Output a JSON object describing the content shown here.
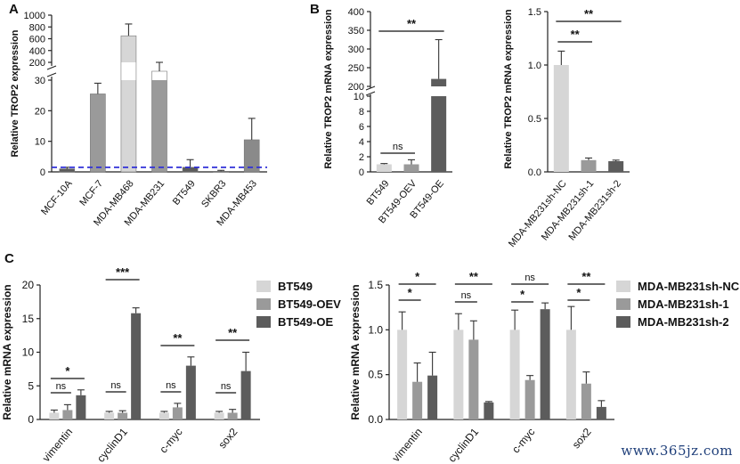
{
  "panels": {
    "A": "A",
    "B": "B",
    "C": "C"
  },
  "watermark": "www.365jz.com",
  "colors": {
    "light": "#d6d6d6",
    "mid": "#9a9a9a",
    "dark": "#5c5c5c",
    "dash": "#3030d8"
  },
  "chart_data": [
    {
      "id": "A",
      "type": "bar",
      "ylabel": "Relative TROP2 expression",
      "broken_axis": true,
      "lower_ylim": [
        0,
        30
      ],
      "lower_ticks": [
        "0",
        "10",
        "20",
        "30"
      ],
      "upper_ylim": [
        0,
        1000
      ],
      "upper_ticks": [
        "200",
        "400",
        "600",
        "800",
        "1000"
      ],
      "reference_line": 1.5,
      "categories": [
        "MCF-10A",
        "MCF-7",
        "MDA-MB468",
        "MDA-MB231",
        "BT549",
        "SKBR3",
        "MDA-MB453"
      ],
      "values": [
        1,
        25.5,
        650,
        180,
        1.5,
        0.2,
        10.5
      ],
      "errors": [
        0.5,
        3.5,
        200,
        20,
        2.5,
        0.3,
        7
      ],
      "bar_colors": [
        "#5c5c5c",
        "#9a9a9a",
        "#d6d6d6",
        "#9a9a9a",
        "#5c5c5c",
        "#5c5c5c",
        "#8a8a8a"
      ]
    },
    {
      "id": "B-left",
      "type": "bar",
      "ylabel": "Relative TROP2 mRNA expression",
      "broken_axis": true,
      "lower_ylim": [
        0,
        10
      ],
      "lower_ticks": [
        "0",
        "2",
        "4",
        "6",
        "8",
        "10"
      ],
      "upper_ylim": [
        200,
        400
      ],
      "upper_ticks": [
        "200",
        "250",
        "300",
        "350",
        "400"
      ],
      "categories": [
        "BT549",
        "BT549-OEV",
        "BT549-OE"
      ],
      "values": [
        1,
        1,
        220
      ],
      "errors": [
        0.1,
        0.6,
        105
      ],
      "bar_colors": [
        "#d6d6d6",
        "#9a9a9a",
        "#5c5c5c"
      ],
      "annotations": [
        {
          "from": 0,
          "to": 2,
          "text": "**"
        },
        {
          "from": 0,
          "to": 1,
          "text": "ns"
        }
      ]
    },
    {
      "id": "B-right",
      "type": "bar",
      "ylabel": "Relative TROP2 mRNA expression",
      "ylim": [
        0,
        1.5
      ],
      "yticks": [
        "0.0",
        "0.5",
        "1.0",
        "1.5"
      ],
      "categories": [
        "MDA-MB231sh-NC",
        "MDA-MB231sh-1",
        "MDA-MB231sh-2"
      ],
      "values": [
        1.0,
        0.11,
        0.1
      ],
      "errors": [
        0.13,
        0.02,
        0.01
      ],
      "bar_colors": [
        "#d6d6d6",
        "#9a9a9a",
        "#5c5c5c"
      ],
      "annotations": [
        {
          "from": 0,
          "to": 2,
          "text": "**"
        },
        {
          "from": 0,
          "to": 1,
          "text": "**"
        }
      ]
    },
    {
      "id": "C-left",
      "type": "bar",
      "ylabel": "Relative mRNA expression",
      "ylim": [
        0,
        20
      ],
      "yticks": [
        "0",
        "5",
        "10",
        "15",
        "20"
      ],
      "categories": [
        "vimentin",
        "cyclinD1",
        "c-myc",
        "sox2"
      ],
      "series": [
        {
          "name": "BT549",
          "values": [
            1,
            1,
            1,
            1
          ],
          "errors": [
            0.4,
            0.2,
            0.2,
            0.2
          ]
        },
        {
          "name": "BT549-OEV",
          "values": [
            1.4,
            1,
            1.8,
            1
          ],
          "errors": [
            0.8,
            0.3,
            0.6,
            0.5
          ]
        },
        {
          "name": "BT549-OE",
          "values": [
            3.6,
            15.8,
            8,
            7.2
          ],
          "errors": [
            0.8,
            0.8,
            1.3,
            2.8
          ]
        }
      ],
      "legend": "right",
      "annotations": [
        {
          "group": 0,
          "from": 0,
          "to": 2,
          "text": "*",
          "level": 2
        },
        {
          "group": 0,
          "from": 0,
          "to": 1,
          "text": "ns",
          "level": 1
        },
        {
          "group": 1,
          "from": 0,
          "to": 2,
          "text": "***",
          "level": 2
        },
        {
          "group": 1,
          "from": 0,
          "to": 1,
          "text": "ns",
          "level": 1
        },
        {
          "group": 2,
          "from": 0,
          "to": 2,
          "text": "**",
          "level": 2
        },
        {
          "group": 2,
          "from": 0,
          "to": 1,
          "text": "ns",
          "level": 1
        },
        {
          "group": 3,
          "from": 0,
          "to": 2,
          "text": "**",
          "level": 2
        },
        {
          "group": 3,
          "from": 0,
          "to": 1,
          "text": "ns",
          "level": 1
        }
      ]
    },
    {
      "id": "C-right",
      "type": "bar",
      "ylabel": "Relative mRNA expression",
      "ylim": [
        0,
        1.5
      ],
      "yticks": [
        "0.0",
        "0.5",
        "1.0",
        "1.5"
      ],
      "categories": [
        "vimentin",
        "cyclinD1",
        "c-myc",
        "sox2"
      ],
      "series": [
        {
          "name": "MDA-MB231sh-NC",
          "values": [
            1,
            1,
            1,
            1
          ],
          "errors": [
            0.2,
            0.18,
            0.22,
            0.26
          ]
        },
        {
          "name": "MDA-MB231sh-1",
          "values": [
            0.42,
            0.89,
            0.44,
            0.4
          ],
          "errors": [
            0.21,
            0.21,
            0.05,
            0.13
          ]
        },
        {
          "name": "MDA-MB231sh-2",
          "values": [
            0.49,
            0.19,
            1.23,
            0.14
          ],
          "errors": [
            0.26,
            0.01,
            0.07,
            0.07
          ]
        }
      ],
      "legend": "right",
      "annotations": [
        {
          "group": 0,
          "from": 0,
          "to": 2,
          "text": "*",
          "level": 2
        },
        {
          "group": 0,
          "from": 0,
          "to": 1,
          "text": "*",
          "level": 1
        },
        {
          "group": 1,
          "from": 0,
          "to": 2,
          "text": "**",
          "level": 2
        },
        {
          "group": 1,
          "from": 0,
          "to": 1,
          "text": "ns",
          "level": 1
        },
        {
          "group": 2,
          "from": 0,
          "to": 2,
          "text": "ns",
          "level": 2
        },
        {
          "group": 2,
          "from": 0,
          "to": 1,
          "text": "*",
          "level": 1
        },
        {
          "group": 3,
          "from": 0,
          "to": 2,
          "text": "**",
          "level": 2
        },
        {
          "group": 3,
          "from": 0,
          "to": 1,
          "text": "*",
          "level": 1
        }
      ]
    }
  ]
}
